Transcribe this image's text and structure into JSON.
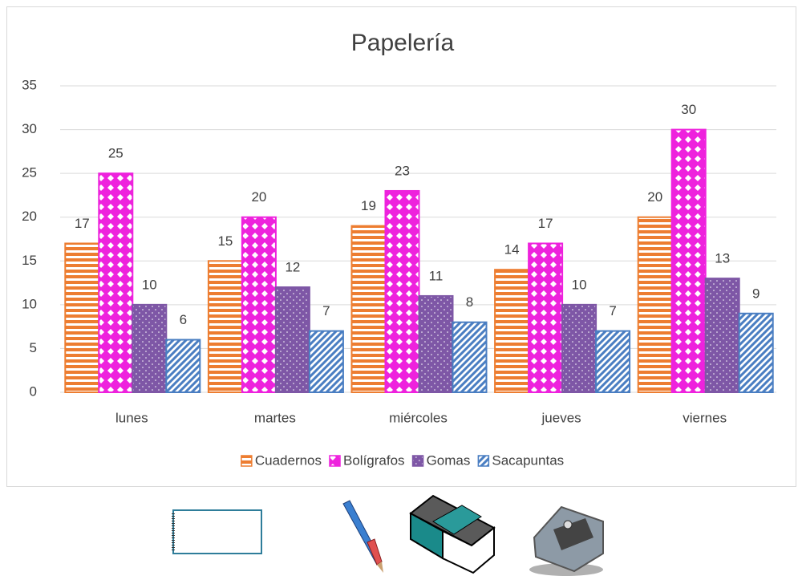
{
  "chart_data": {
    "type": "bar",
    "title": "Papelería",
    "categories": [
      "lunes",
      "martes",
      "miércoles",
      "jueves",
      "viernes"
    ],
    "series": [
      {
        "name": "Cuadernos",
        "color": "#ED7D31",
        "values": [
          17,
          15,
          19,
          14,
          20
        ]
      },
      {
        "name": "Bolígrafos",
        "color": "#EE22DD",
        "values": [
          25,
          20,
          23,
          17,
          30
        ]
      },
      {
        "name": "Gomas",
        "color": "#7E57A6",
        "values": [
          10,
          12,
          11,
          10,
          13
        ]
      },
      {
        "name": "Sacapuntas",
        "color": "#4A7EC2",
        "values": [
          6,
          7,
          8,
          7,
          9
        ]
      }
    ],
    "ylim": [
      0,
      35
    ],
    "yticks": [
      0,
      5,
      10,
      15,
      20,
      25,
      30,
      35
    ],
    "grid": true,
    "legend": "bottom"
  }
}
